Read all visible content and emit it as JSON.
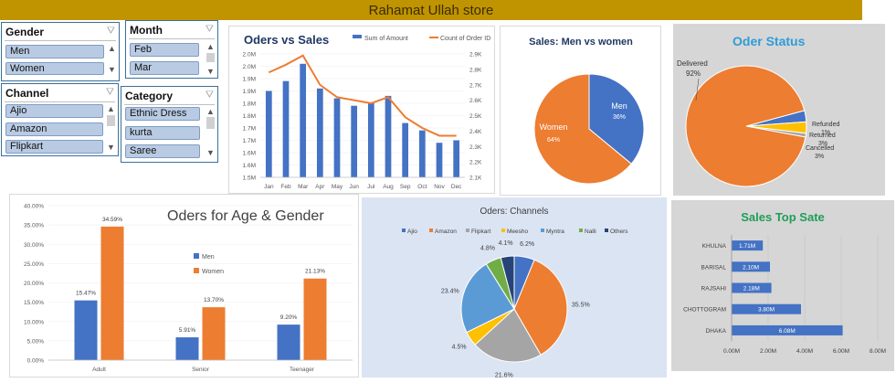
{
  "title": "Rahamat Ullah store",
  "slicers": {
    "gender": {
      "label": "Gender",
      "items": [
        "Men",
        "Women"
      ]
    },
    "month": {
      "label": "Month",
      "items": [
        "Feb",
        "Mar"
      ]
    },
    "channel": {
      "label": "Channel",
      "items": [
        "Ajio",
        "Amazon",
        "Flipkart"
      ]
    },
    "category": {
      "label": "Category",
      "items": [
        "Ethnic Dress",
        "kurta",
        "Saree"
      ]
    }
  },
  "chart_data": [
    {
      "type": "bar",
      "title": "Oders vs Sales",
      "categories": [
        "Jan",
        "Feb",
        "Mar",
        "Apr",
        "May",
        "Jun",
        "Jul",
        "Aug",
        "Sep",
        "Oct",
        "Nov",
        "Dec"
      ],
      "series": [
        {
          "name": "Sum of Amount",
          "type": "bar",
          "axis": "left",
          "color": "#4472c4",
          "values": [
            1.85,
            1.89,
            1.96,
            1.86,
            1.82,
            1.79,
            1.8,
            1.83,
            1.72,
            1.69,
            1.64,
            1.65
          ]
        },
        {
          "name": "Count of Order ID",
          "type": "line",
          "axis": "right",
          "color": "#ed7d31",
          "values": [
            2.78,
            2.83,
            2.89,
            2.7,
            2.62,
            2.6,
            2.58,
            2.62,
            2.49,
            2.42,
            2.37,
            2.37
          ]
        }
      ],
      "yleft": {
        "min": 1.5,
        "max": 2.0,
        "ticks": [
          "1.5M",
          "1.6M",
          "1.7M",
          "1.8M",
          "1.9M",
          "2.0M"
        ],
        "extra_ticks": [
          "1.55M",
          "1.65M",
          "1.75M",
          "1.85M",
          "1.95M"
        ]
      },
      "yright": {
        "min": 2.1,
        "max": 2.9,
        "ticks": [
          "2.1K",
          "2.2K",
          "2.3K",
          "2.4K",
          "2.5K",
          "2.6K",
          "2.7K",
          "2.8K",
          "2.9K"
        ]
      },
      "yleft_labels": [
        "1.5M",
        "1.6M",
        "1.6M",
        "1.7M",
        "1.7M",
        "1.8M",
        "1.8M",
        "1.9M",
        "1.9M",
        "2.0M",
        "2.0M"
      ]
    },
    {
      "type": "pie",
      "title": "Sales: Men vs women",
      "slices": [
        {
          "name": "Men",
          "value": 36,
          "label": "36%",
          "color": "#4472c4"
        },
        {
          "name": "Women",
          "value": 64,
          "label": "64%",
          "color": "#ed7d31"
        }
      ]
    },
    {
      "type": "pie",
      "title": "Oder Status",
      "slices": [
        {
          "name": "Delivered",
          "value": 92,
          "label": "92%",
          "color": "#ed7d31"
        },
        {
          "name": "Refunded",
          "value": 1,
          "label": "1%",
          "color": "#a5a5a5"
        },
        {
          "name": "Returned",
          "value": 3,
          "label": "3%",
          "color": "#ffc000"
        },
        {
          "name": "Cancelled",
          "value": 3,
          "label": "3%",
          "color": "#4472c4"
        }
      ]
    },
    {
      "type": "bar",
      "title": "Oders for Age & Gender",
      "categories": [
        "Adult",
        "Senior",
        "Teenager"
      ],
      "series": [
        {
          "name": "Men",
          "color": "#4472c4",
          "values": [
            15.47,
            5.91,
            9.2
          ],
          "labels": [
            "15.47%",
            "5.91%",
            "9.20%"
          ]
        },
        {
          "name": "Women",
          "color": "#ed7d31",
          "values": [
            34.59,
            13.7,
            21.13
          ],
          "labels": [
            "34.59%",
            "13.70%",
            "21.13%"
          ]
        }
      ],
      "ylim": [
        0,
        40
      ],
      "yticks": [
        "0.00%",
        "5.00%",
        "10.00%",
        "15.00%",
        "20.00%",
        "25.00%",
        "30.00%",
        "35.00%",
        "40.00%"
      ]
    },
    {
      "type": "pie",
      "title": "Oders: Channels",
      "slices": [
        {
          "name": "Ajio",
          "value": 6.2,
          "label": "6.2%",
          "color": "#4472c4"
        },
        {
          "name": "Amazon",
          "value": 35.5,
          "label": "35.5%",
          "color": "#ed7d31"
        },
        {
          "name": "Flipkart",
          "value": 21.6,
          "label": "21.6%",
          "color": "#a5a5a5"
        },
        {
          "name": "Meesho",
          "value": 4.5,
          "label": "4.5%",
          "color": "#ffc000"
        },
        {
          "name": "Myntra",
          "value": 23.4,
          "label": "23.4%",
          "color": "#5b9bd5"
        },
        {
          "name": "Nalli",
          "value": 4.8,
          "label": "4.8%",
          "color": "#70ad47"
        },
        {
          "name": "Others",
          "value": 4.1,
          "label": "4.1%",
          "color": "#264478"
        }
      ]
    },
    {
      "type": "bar",
      "orientation": "horizontal",
      "title": "Sales Top Sate",
      "categories": [
        "KHULNA",
        "BARISAL",
        "RAJSAHI",
        "CHOTTOGRAM",
        "DHAKA"
      ],
      "values": [
        1.71,
        2.1,
        2.18,
        3.8,
        6.08
      ],
      "labels": [
        "1.71M",
        "2.10M",
        "2.18M",
        "3.80M",
        "6.08M"
      ],
      "xlim": [
        0,
        8
      ],
      "xticks": [
        "0.00M",
        "2.00M",
        "4.00M",
        "6.00M",
        "8.00M"
      ],
      "color": "#4472c4"
    }
  ]
}
